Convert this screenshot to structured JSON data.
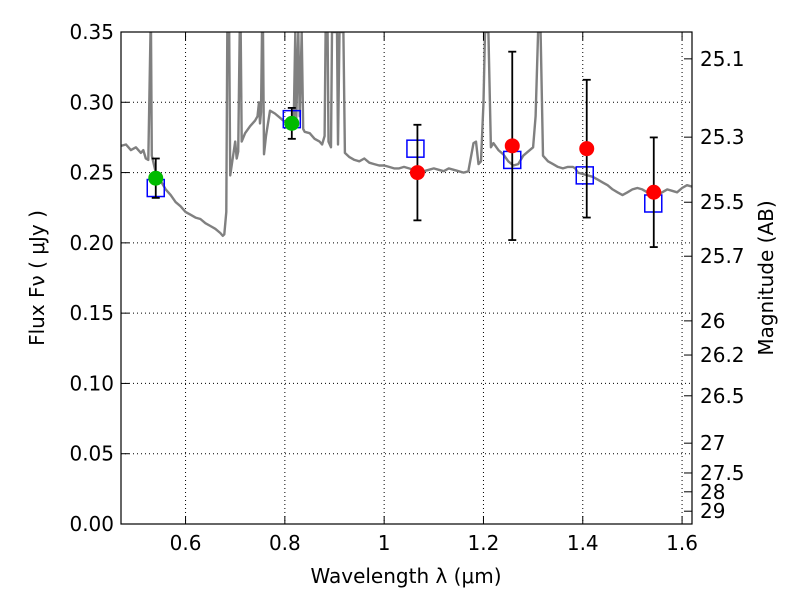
{
  "chart_data": {
    "type": "scatter",
    "title": "",
    "xlabel": "Wavelength  λ (μm)",
    "ylabel": "Flux  Fν  ( μJy )",
    "y2label": "Magnitude (AB)",
    "xlim": [
      0.47,
      1.62
    ],
    "ylim": [
      0.0,
      0.35
    ],
    "grid": true,
    "x_ticks": [
      0.6,
      0.8,
      1.0,
      1.2,
      1.4,
      1.6
    ],
    "x_tick_labels": [
      "0.6",
      "0.8",
      "1",
      "1.2",
      "1.4",
      "1.6"
    ],
    "y_ticks": [
      0.0,
      0.05,
      0.1,
      0.15,
      0.2,
      0.25,
      0.3,
      0.35
    ],
    "y_tick_labels": [
      "0.00",
      "0.05",
      "0.10",
      "0.15",
      "0.20",
      "0.25",
      "0.30",
      "0.35"
    ],
    "y2_ticks": [
      {
        "flux": 0.3309,
        "label": "25.1"
      },
      {
        "flux": 0.2752,
        "label": "25.3"
      },
      {
        "flux": 0.2289,
        "label": "25.5"
      },
      {
        "flux": 0.1905,
        "label": "25.7"
      },
      {
        "flux": 0.1445,
        "label": "26"
      },
      {
        "flux": 0.1202,
        "label": "26.2"
      },
      {
        "flux": 0.0912,
        "label": "26.5"
      },
      {
        "flux": 0.0575,
        "label": "27"
      },
      {
        "flux": 0.0363,
        "label": "27.5"
      },
      {
        "flux": 0.0229,
        "label": "28"
      },
      {
        "flux": 0.0091,
        "label": "29"
      }
    ],
    "colors": {
      "model": "#808080",
      "green_points": "#00bb00",
      "red_points": "#ff0000",
      "model_boxes": "#0000ff",
      "errorbars": "#000000",
      "grid": "#000000"
    },
    "series": [
      {
        "name": "model_spectrum",
        "kind": "line",
        "points": [
          [
            0.47,
            0.269
          ],
          [
            0.48,
            0.27
          ],
          [
            0.49,
            0.266
          ],
          [
            0.5,
            0.268
          ],
          [
            0.51,
            0.264
          ],
          [
            0.515,
            0.266
          ],
          [
            0.52,
            0.26
          ],
          [
            0.525,
            0.259
          ],
          [
            0.5295,
            0.35
          ],
          [
            0.5305,
            0.35
          ],
          [
            0.532,
            0.262
          ],
          [
            0.54,
            0.25
          ],
          [
            0.55,
            0.244
          ],
          [
            0.56,
            0.238
          ],
          [
            0.57,
            0.234
          ],
          [
            0.58,
            0.229
          ],
          [
            0.59,
            0.226
          ],
          [
            0.6,
            0.222
          ],
          [
            0.61,
            0.22
          ],
          [
            0.62,
            0.218
          ],
          [
            0.63,
            0.217
          ],
          [
            0.64,
            0.214
          ],
          [
            0.65,
            0.212
          ],
          [
            0.66,
            0.21
          ],
          [
            0.67,
            0.207
          ],
          [
            0.675,
            0.205
          ],
          [
            0.678,
            0.206
          ],
          [
            0.682,
            0.222
          ],
          [
            0.684,
            0.35
          ],
          [
            0.688,
            0.35
          ],
          [
            0.69,
            0.248
          ],
          [
            0.695,
            0.26
          ],
          [
            0.7,
            0.272
          ],
          [
            0.703,
            0.26
          ],
          [
            0.706,
            0.265
          ],
          [
            0.709,
            0.35
          ],
          [
            0.711,
            0.35
          ],
          [
            0.713,
            0.272
          ],
          [
            0.72,
            0.278
          ],
          [
            0.73,
            0.283
          ],
          [
            0.74,
            0.287
          ],
          [
            0.745,
            0.29
          ],
          [
            0.748,
            0.3
          ],
          [
            0.75,
            0.285
          ],
          [
            0.752,
            0.293
          ],
          [
            0.754,
            0.35
          ],
          [
            0.756,
            0.35
          ],
          [
            0.758,
            0.263
          ],
          [
            0.762,
            0.276
          ],
          [
            0.77,
            0.294
          ],
          [
            0.78,
            0.292
          ],
          [
            0.79,
            0.289
          ],
          [
            0.8,
            0.286
          ],
          [
            0.81,
            0.283
          ],
          [
            0.815,
            0.282
          ],
          [
            0.818,
            0.29
          ],
          [
            0.821,
            0.35
          ],
          [
            0.823,
            0.288
          ],
          [
            0.827,
            0.35
          ],
          [
            0.83,
            0.29
          ],
          [
            0.834,
            0.35
          ],
          [
            0.837,
            0.281
          ],
          [
            0.84,
            0.279
          ],
          [
            0.85,
            0.278
          ],
          [
            0.86,
            0.274
          ],
          [
            0.87,
            0.272
          ],
          [
            0.875,
            0.27
          ],
          [
            0.88,
            0.276
          ],
          [
            0.882,
            0.35
          ],
          [
            0.886,
            0.35
          ],
          [
            0.888,
            0.272
          ],
          [
            0.893,
            0.268
          ],
          [
            0.895,
            0.35
          ],
          [
            0.905,
            0.35
          ],
          [
            0.907,
            0.27
          ],
          [
            0.91,
            0.35
          ],
          [
            0.918,
            0.35
          ],
          [
            0.921,
            0.264
          ],
          [
            0.93,
            0.261
          ],
          [
            0.94,
            0.259
          ],
          [
            0.95,
            0.258
          ],
          [
            0.96,
            0.26
          ],
          [
            0.97,
            0.257
          ],
          [
            0.98,
            0.256
          ],
          [
            0.99,
            0.255
          ],
          [
            1.0,
            0.255
          ],
          [
            1.01,
            0.254
          ],
          [
            1.02,
            0.253
          ],
          [
            1.03,
            0.253
          ],
          [
            1.04,
            0.254
          ],
          [
            1.05,
            0.253
          ],
          [
            1.06,
            0.252
          ],
          [
            1.07,
            0.251
          ],
          [
            1.08,
            0.251
          ],
          [
            1.09,
            0.252
          ],
          [
            1.1,
            0.253
          ],
          [
            1.11,
            0.252
          ],
          [
            1.12,
            0.251
          ],
          [
            1.13,
            0.253
          ],
          [
            1.14,
            0.252
          ],
          [
            1.15,
            0.251
          ],
          [
            1.16,
            0.25
          ],
          [
            1.17,
            0.251
          ],
          [
            1.17,
            0.252
          ],
          [
            1.18,
            0.271
          ],
          [
            1.185,
            0.272
          ],
          [
            1.19,
            0.256
          ],
          [
            1.195,
            0.258
          ],
          [
            1.2,
            0.3
          ],
          [
            1.203,
            0.35
          ],
          [
            1.21,
            0.35
          ],
          [
            1.215,
            0.268
          ],
          [
            1.22,
            0.271
          ],
          [
            1.23,
            0.266
          ],
          [
            1.24,
            0.263
          ],
          [
            1.25,
            0.258
          ],
          [
            1.26,
            0.255
          ],
          [
            1.27,
            0.256
          ],
          [
            1.28,
            0.262
          ],
          [
            1.3,
            0.268
          ],
          [
            1.305,
            0.29
          ],
          [
            1.31,
            0.35
          ],
          [
            1.315,
            0.35
          ],
          [
            1.32,
            0.262
          ],
          [
            1.33,
            0.258
          ],
          [
            1.34,
            0.256
          ],
          [
            1.35,
            0.254
          ],
          [
            1.36,
            0.253
          ],
          [
            1.37,
            0.254
          ],
          [
            1.38,
            0.254
          ],
          [
            1.385,
            0.253
          ],
          [
            1.39,
            0.25
          ],
          [
            1.4,
            0.249
          ],
          [
            1.41,
            0.248
          ],
          [
            1.42,
            0.247
          ],
          [
            1.43,
            0.245
          ],
          [
            1.44,
            0.243
          ],
          [
            1.45,
            0.241
          ],
          [
            1.46,
            0.238
          ],
          [
            1.47,
            0.236
          ],
          [
            1.48,
            0.234
          ],
          [
            1.49,
            0.236
          ],
          [
            1.5,
            0.238
          ],
          [
            1.51,
            0.239
          ],
          [
            1.52,
            0.238
          ],
          [
            1.53,
            0.236
          ],
          [
            1.54,
            0.234
          ],
          [
            1.55,
            0.234
          ],
          [
            1.56,
            0.236
          ],
          [
            1.57,
            0.238
          ],
          [
            1.58,
            0.237
          ],
          [
            1.59,
            0.236
          ],
          [
            1.6,
            0.239
          ],
          [
            1.61,
            0.241
          ],
          [
            1.62,
            0.24
          ]
        ]
      },
      {
        "name": "model_photometry",
        "kind": "open-square",
        "points": [
          {
            "x": 0.54,
            "y": 0.239
          },
          {
            "x": 0.814,
            "y": 0.288
          },
          {
            "x": 1.063,
            "y": 0.267
          },
          {
            "x": 1.258,
            "y": 0.259
          },
          {
            "x": 1.404,
            "y": 0.248
          },
          {
            "x": 1.542,
            "y": 0.228
          }
        ]
      },
      {
        "name": "optical_detections",
        "kind": "filled-circle",
        "color": "green",
        "points": [
          {
            "x": 0.54,
            "y": 0.246,
            "yerr": 0.014
          },
          {
            "x": 0.814,
            "y": 0.285,
            "yerr": 0.011
          }
        ]
      },
      {
        "name": "infrared_detections",
        "kind": "filled-circle",
        "color": "red",
        "points": [
          {
            "x": 1.067,
            "y": 0.25,
            "yerr": 0.034
          },
          {
            "x": 1.258,
            "y": 0.269,
            "yerr": 0.067
          },
          {
            "x": 1.408,
            "y": 0.267,
            "yerr": 0.049
          },
          {
            "x": 1.543,
            "y": 0.236,
            "yerr": 0.039
          }
        ]
      }
    ]
  }
}
